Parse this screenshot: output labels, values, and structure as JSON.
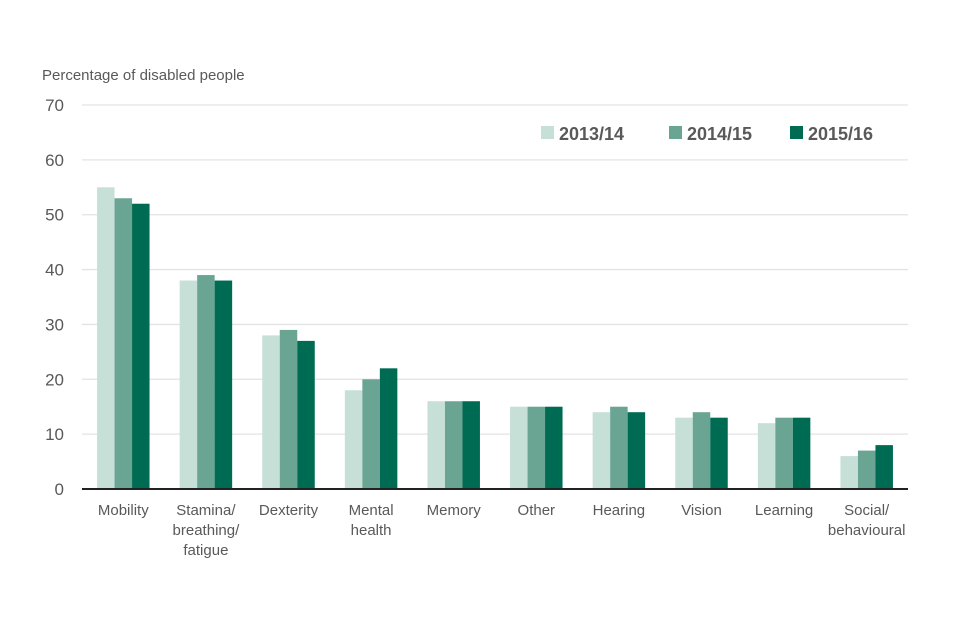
{
  "chart_data": {
    "type": "bar",
    "ylabel": "Percentage of disabled people",
    "xlabel": "",
    "ylim": [
      0,
      70
    ],
    "yticks": [
      0,
      10,
      20,
      30,
      40,
      50,
      60,
      70
    ],
    "grid": true,
    "legend_position": "top-right",
    "categories": [
      [
        "Mobility"
      ],
      [
        "Stamina/",
        "breathing/",
        "fatigue"
      ],
      [
        "Dexterity"
      ],
      [
        "Mental",
        "health"
      ],
      [
        "Memory"
      ],
      [
        "Other"
      ],
      [
        "Hearing"
      ],
      [
        "Vision"
      ],
      [
        "Learning"
      ],
      [
        "Social/",
        "behavioural"
      ]
    ],
    "series": [
      {
        "name": "2013/14",
        "color": "#c6e0d8",
        "values": [
          55,
          38,
          28,
          18,
          16,
          15,
          14,
          13,
          12,
          6
        ]
      },
      {
        "name": "2014/15",
        "color": "#6aa594",
        "values": [
          53,
          39,
          29,
          20,
          16,
          15,
          15,
          14,
          13,
          7
        ]
      },
      {
        "name": "2015/16",
        "color": "#006b53",
        "values": [
          52,
          38,
          27,
          22,
          16,
          15,
          14,
          13,
          13,
          8
        ]
      }
    ],
    "colors": {
      "grid": "#e3e3e3",
      "axis": "#222222",
      "text": "#595959"
    }
  }
}
